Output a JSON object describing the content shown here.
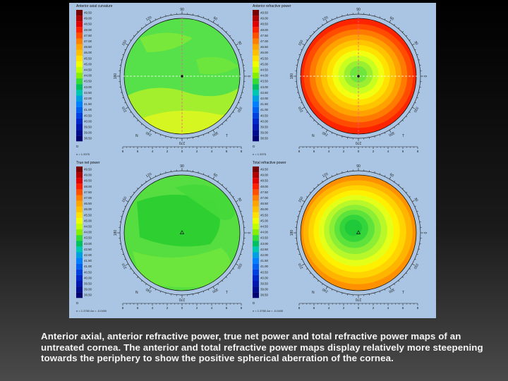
{
  "scale_values": [
    "49.50",
    "49.00",
    "48.50",
    "48.00",
    "47.50",
    "47.00",
    "46.50",
    "46.00",
    "45.50",
    "45.00",
    "44.50",
    "44.00",
    "43.50",
    "43.00",
    "42.50",
    "42.00",
    "41.50",
    "41.00",
    "40.50",
    "40.00",
    "39.50",
    "39.00",
    "38.50"
  ],
  "scale_unit": "D",
  "scale_colors": [
    "#7a0000",
    "#b00000",
    "#e00000",
    "#ff2000",
    "#ff5000",
    "#ff8000",
    "#ffa500",
    "#ffc000",
    "#ffe000",
    "#f0ff00",
    "#c0ff00",
    "#88ee00",
    "#33dd33",
    "#00c060",
    "#00c8b0",
    "#00a0e0",
    "#0080ff",
    "#0060f0",
    "#0040e0",
    "#0028c8",
    "#0018b0",
    "#000c90",
    "#000070"
  ],
  "ruler_labels": [
    "8",
    "6",
    "4",
    "2",
    "0",
    "2",
    "4",
    "6",
    "8"
  ],
  "angle_labels": {
    "top": "90",
    "upper_left": "120",
    "upper_right": "60",
    "left_high": "150",
    "right_high": "30",
    "left": "180",
    "right": "0",
    "left_low": "210",
    "right_low": "330",
    "lower_left": "240",
    "lower_right": "300",
    "bottom": "270"
  },
  "nasal_label": "N",
  "temporal_label": "T",
  "panels": [
    {
      "title": "Anterior axial curvature",
      "footnote": "n = 1.3375"
    },
    {
      "title": "Anterior refractive power",
      "footnote": "n = 1.3375"
    },
    {
      "title": "True net power",
      "footnote": "n = 1.3760 Δn = -0.0400"
    },
    {
      "title": "Total refractive power",
      "footnote": "n = 1.3760 Δn = -0.0400"
    }
  ],
  "caption": "Anterior axial, anterior refractive power, true net power and total refractive power maps of an untreated cornea. The anterior and total refractive power maps display relatively more steepening towards the periphery to show the positive spherical aberration of the cornea."
}
